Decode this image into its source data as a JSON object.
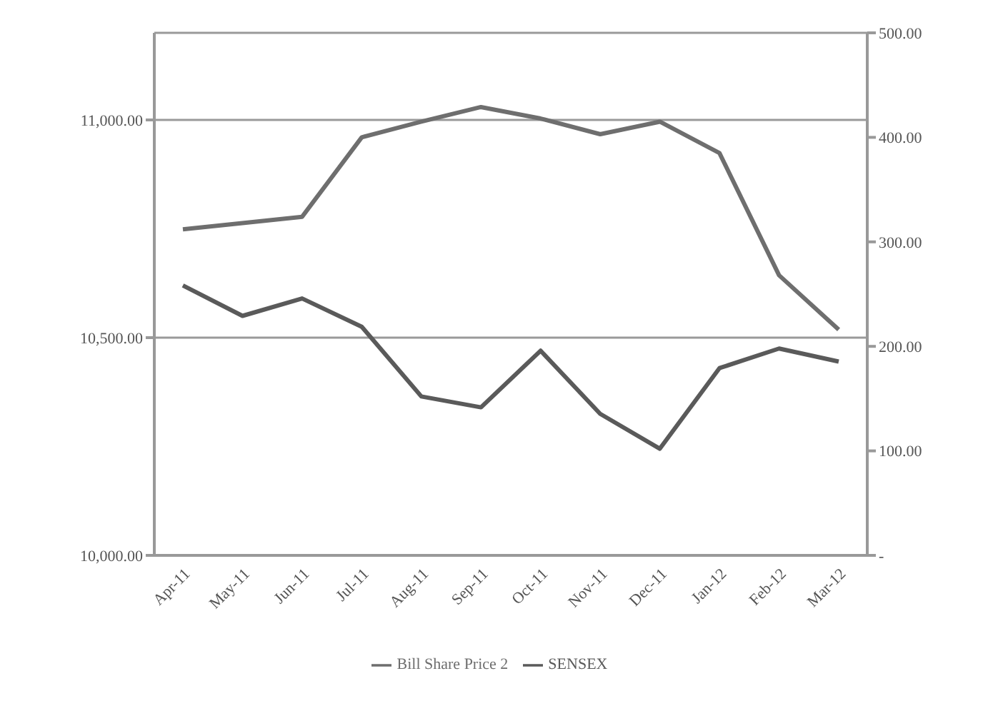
{
  "chart_data": {
    "type": "line",
    "categories": [
      "Apr-11",
      "May-11",
      "Jun-11",
      "Jul-11",
      "Aug-11",
      "Sep-11",
      "Oct-11",
      "Nov-11",
      "Dec-11",
      "Jan-12",
      "Feb-12",
      "Mar-12"
    ],
    "series": [
      {
        "name": "SENSEX",
        "color": "#5a5a5a",
        "values": [
          10620,
          10550,
          10590,
          10525,
          10365,
          10340,
          10470,
          10325,
          10245,
          10430,
          10475,
          10445
        ]
      },
      {
        "name": "Bill Share Price 2",
        "color": "#6e6e6e",
        "axis": "y2",
        "values": [
          312,
          318,
          324,
          400,
          415,
          429,
          418,
          403,
          415,
          385,
          268,
          216
        ]
      }
    ],
    "ylim": [
      10000,
      11200
    ],
    "yticks": [
      {
        "value": 10000,
        "label": "10,000.00"
      },
      {
        "value": 10500,
        "label": "10,500.00"
      },
      {
        "value": 11000,
        "label": "11,000.00"
      }
    ],
    "y2lim": [
      0,
      500
    ],
    "y2ticks": [
      {
        "value": 0,
        "label": "-"
      },
      {
        "value": 100,
        "label": "100.00"
      },
      {
        "value": 200,
        "label": "200.00"
      },
      {
        "value": 300,
        "label": "300.00"
      },
      {
        "value": 400,
        "label": "400.00"
      },
      {
        "value": 500,
        "label": "500.00"
      }
    ],
    "grid": "y",
    "legend": "bottom",
    "marker": "none",
    "line_style": "solid"
  }
}
